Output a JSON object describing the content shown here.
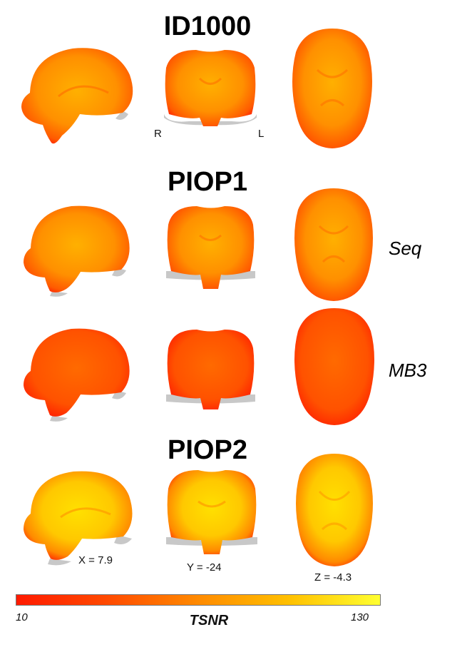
{
  "datasets": [
    {
      "title": "ID1000",
      "rows": [
        {
          "condition": ""
        }
      ]
    },
    {
      "title": "PIOP1",
      "rows": [
        {
          "condition": "Seq"
        },
        {
          "condition": "MB3"
        }
      ]
    },
    {
      "title": "PIOP2",
      "rows": [
        {
          "condition": ""
        }
      ]
    }
  ],
  "orientation": {
    "right": "R",
    "left": "L"
  },
  "slices": {
    "x": "X = 7.9",
    "y": "Y = -24",
    "z": "Z = -4.3"
  },
  "colorbar": {
    "min": "10",
    "max": "130",
    "label": "TSNR",
    "colors": [
      "#ff1a00",
      "#ff4a00",
      "#ff8a00",
      "#ffc000",
      "#ffff30"
    ]
  }
}
